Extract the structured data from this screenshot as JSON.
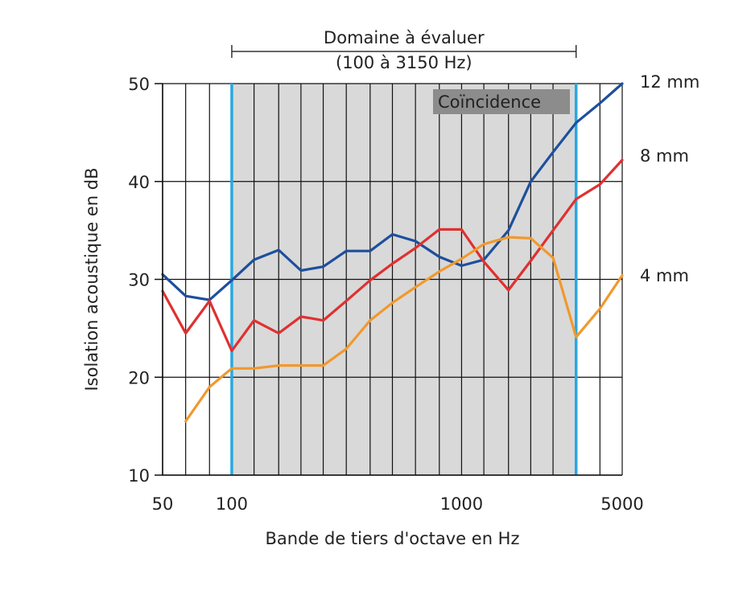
{
  "chart_data": {
    "type": "line",
    "xlabel": "Bande de tiers d'octave en Hz",
    "ylabel": "Isolation acoustique en dB",
    "x_scale": "log",
    "xlim": [
      50,
      5000
    ],
    "ylim": [
      10,
      50
    ],
    "x_ticks": [
      {
        "value": 50,
        "label": "50"
      },
      {
        "value": 100,
        "label": "100"
      },
      {
        "value": 1000,
        "label": "1000"
      },
      {
        "value": 5000,
        "label": "5000"
      }
    ],
    "y_ticks": [
      {
        "value": 10,
        "label": "10"
      },
      {
        "value": 20,
        "label": "20"
      },
      {
        "value": 30,
        "label": "30"
      },
      {
        "value": 40,
        "label": "40"
      },
      {
        "value": 50,
        "label": "50"
      }
    ],
    "vertical_gridlines": [
      50,
      63,
      80,
      100,
      125,
      160,
      200,
      250,
      315,
      400,
      500,
      630,
      800,
      1000,
      1250,
      1600,
      2000,
      2500,
      3150,
      4000,
      5000
    ],
    "horizontal_gridlines": [
      10,
      20,
      30,
      40,
      50
    ],
    "grid": true,
    "range_annotation": {
      "line1": "Domaine à évaluer",
      "line2": "(100 à 3150 Hz)",
      "from": 100,
      "to": 3150,
      "color": "#29a8e0",
      "shade_color": "#d9d9d9"
    },
    "coincidence_label": "Coïncidence",
    "series": [
      {
        "name": "12 mm",
        "color": "#1d4f9c",
        "x": [
          50,
          63,
          80,
          100,
          125,
          160,
          200,
          250,
          315,
          400,
          500,
          630,
          800,
          1000,
          1250,
          1600,
          2000,
          2500,
          3150,
          4000,
          5000
        ],
        "values": [
          30.5,
          28.3,
          27.9,
          29.9,
          32.0,
          33.0,
          30.9,
          31.3,
          32.9,
          32.9,
          34.6,
          33.9,
          32.3,
          31.4,
          32.0,
          35.0,
          40.0,
          43.0,
          46.0,
          48.0,
          50.0
        ]
      },
      {
        "name": "8 mm",
        "color": "#e03030",
        "x": [
          50,
          63,
          80,
          100,
          125,
          160,
          200,
          250,
          315,
          400,
          500,
          630,
          800,
          1000,
          1250,
          1600,
          2000,
          2500,
          3150,
          4000,
          5000
        ],
        "values": [
          28.8,
          24.5,
          27.8,
          22.7,
          25.8,
          24.5,
          26.2,
          25.8,
          27.8,
          29.9,
          31.6,
          33.2,
          35.1,
          35.1,
          31.8,
          28.9,
          31.9,
          35.0,
          38.2,
          39.7,
          42.2
        ]
      },
      {
        "name": "4 mm",
        "color": "#f0992e",
        "x": [
          63,
          80,
          100,
          125,
          160,
          200,
          250,
          315,
          400,
          500,
          630,
          800,
          1000,
          1250,
          1600,
          2000,
          2500,
          3150,
          4000,
          5000
        ],
        "values": [
          15.5,
          19.0,
          20.9,
          20.9,
          21.2,
          21.2,
          21.2,
          22.9,
          25.8,
          27.6,
          29.2,
          30.8,
          32.1,
          33.6,
          34.3,
          34.2,
          32.2,
          24.1,
          27.0,
          30.4
        ]
      }
    ]
  }
}
